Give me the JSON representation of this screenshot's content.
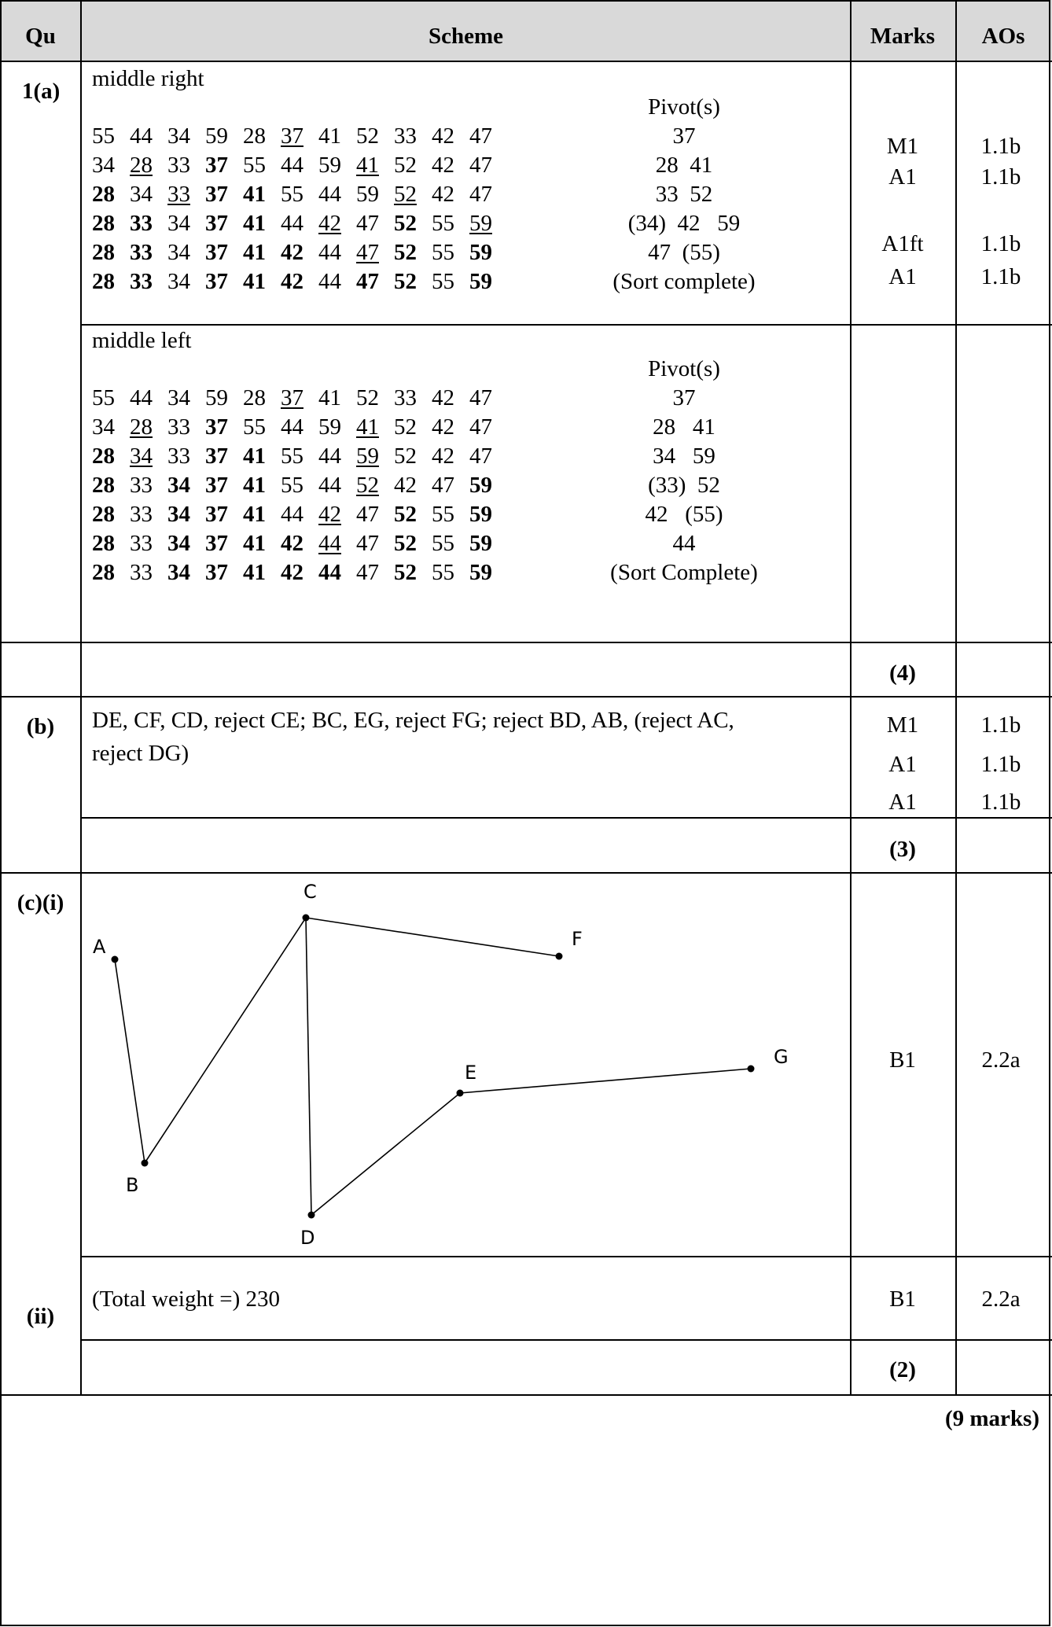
{
  "header": {
    "qu": "Qu",
    "scheme": "Scheme",
    "marks": "Marks",
    "aos": "AOs"
  },
  "q1a": {
    "label": "1(a)",
    "middle_right": {
      "title": "middle right",
      "pivot_header": "Pivot(s)",
      "rows": [
        {
          "cells": [
            {
              "v": "55"
            },
            {
              "v": "44"
            },
            {
              "v": "34"
            },
            {
              "v": "59"
            },
            {
              "v": "28"
            },
            {
              "v": "37",
              "u": true
            },
            {
              "v": "41"
            },
            {
              "v": "52"
            },
            {
              "v": "33"
            },
            {
              "v": "42"
            },
            {
              "v": "47"
            }
          ],
          "pivot": "37"
        },
        {
          "cells": [
            {
              "v": "34"
            },
            {
              "v": "28",
              "u": true
            },
            {
              "v": "33"
            },
            {
              "v": "37",
              "b": true
            },
            {
              "v": "55"
            },
            {
              "v": "44"
            },
            {
              "v": "59"
            },
            {
              "v": "41",
              "u": true
            },
            {
              "v": "52"
            },
            {
              "v": "42"
            },
            {
              "v": "47"
            }
          ],
          "pivot": "28  41"
        },
        {
          "cells": [
            {
              "v": "28",
              "b": true
            },
            {
              "v": "34"
            },
            {
              "v": "33",
              "u": true
            },
            {
              "v": "37",
              "b": true
            },
            {
              "v": "41",
              "b": true
            },
            {
              "v": "55"
            },
            {
              "v": "44"
            },
            {
              "v": "59"
            },
            {
              "v": "52",
              "u": true
            },
            {
              "v": "42"
            },
            {
              "v": "47"
            }
          ],
          "pivot": "33  52"
        },
        {
          "cells": [
            {
              "v": "28",
              "b": true
            },
            {
              "v": "33",
              "b": true
            },
            {
              "v": "34"
            },
            {
              "v": "37",
              "b": true
            },
            {
              "v": "41",
              "b": true
            },
            {
              "v": "44"
            },
            {
              "v": "42",
              "u": true
            },
            {
              "v": "47"
            },
            {
              "v": "52",
              "b": true
            },
            {
              "v": "55"
            },
            {
              "v": "59",
              "u": true
            }
          ],
          "pivot": "(34)  42   59"
        },
        {
          "cells": [
            {
              "v": "28",
              "b": true
            },
            {
              "v": "33",
              "b": true
            },
            {
              "v": "34"
            },
            {
              "v": "37",
              "b": true
            },
            {
              "v": "41",
              "b": true
            },
            {
              "v": "42",
              "b": true
            },
            {
              "v": "44"
            },
            {
              "v": "47",
              "u": true
            },
            {
              "v": "52",
              "b": true
            },
            {
              "v": "55"
            },
            {
              "v": "59",
              "b": true
            }
          ],
          "pivot": "47  (55)"
        },
        {
          "cells": [
            {
              "v": "28",
              "b": true
            },
            {
              "v": "33",
              "b": true
            },
            {
              "v": "34"
            },
            {
              "v": "37",
              "b": true
            },
            {
              "v": "41",
              "b": true
            },
            {
              "v": "42",
              "b": true
            },
            {
              "v": "44"
            },
            {
              "v": "47",
              "b": true
            },
            {
              "v": "52",
              "b": true
            },
            {
              "v": "55"
            },
            {
              "v": "59",
              "b": true
            }
          ],
          "pivot": "(Sort complete)"
        }
      ],
      "marks": [
        {
          "mark": "M1",
          "ao": "1.1b"
        },
        {
          "mark": "A1",
          "ao": "1.1b"
        },
        {
          "mark": "A1ft",
          "ao": "1.1b"
        },
        {
          "mark": "A1",
          "ao": "1.1b"
        }
      ]
    },
    "middle_left": {
      "title": "middle left",
      "pivot_header": "Pivot(s)",
      "rows": [
        {
          "cells": [
            {
              "v": "55"
            },
            {
              "v": "44"
            },
            {
              "v": "34"
            },
            {
              "v": "59"
            },
            {
              "v": "28"
            },
            {
              "v": "37",
              "u": true
            },
            {
              "v": "41"
            },
            {
              "v": "52"
            },
            {
              "v": "33"
            },
            {
              "v": "42"
            },
            {
              "v": "47"
            }
          ],
          "pivot": "37"
        },
        {
          "cells": [
            {
              "v": "34"
            },
            {
              "v": "28",
              "u": true
            },
            {
              "v": "33"
            },
            {
              "v": "37",
              "b": true
            },
            {
              "v": "55"
            },
            {
              "v": "44"
            },
            {
              "v": "59"
            },
            {
              "v": "41",
              "u": true
            },
            {
              "v": "52"
            },
            {
              "v": "42"
            },
            {
              "v": "47"
            }
          ],
          "pivot": "28   41"
        },
        {
          "cells": [
            {
              "v": "28",
              "b": true
            },
            {
              "v": "34",
              "u": true
            },
            {
              "v": "33"
            },
            {
              "v": "37",
              "b": true
            },
            {
              "v": "41",
              "b": true
            },
            {
              "v": "55"
            },
            {
              "v": "44"
            },
            {
              "v": "59",
              "u": true
            },
            {
              "v": "52"
            },
            {
              "v": "42"
            },
            {
              "v": "47"
            }
          ],
          "pivot": "34   59"
        },
        {
          "cells": [
            {
              "v": "28",
              "b": true
            },
            {
              "v": "33"
            },
            {
              "v": "34",
              "b": true
            },
            {
              "v": "37",
              "b": true
            },
            {
              "v": "41",
              "b": true
            },
            {
              "v": "55"
            },
            {
              "v": "44"
            },
            {
              "v": "52",
              "u": true
            },
            {
              "v": "42"
            },
            {
              "v": "47"
            },
            {
              "v": "59",
              "b": true
            }
          ],
          "pivot": "(33)  52"
        },
        {
          "cells": [
            {
              "v": "28",
              "b": true
            },
            {
              "v": "33"
            },
            {
              "v": "34",
              "b": true
            },
            {
              "v": "37",
              "b": true
            },
            {
              "v": "41",
              "b": true
            },
            {
              "v": "44"
            },
            {
              "v": "42",
              "u": true
            },
            {
              "v": "47"
            },
            {
              "v": "52",
              "b": true
            },
            {
              "v": "55"
            },
            {
              "v": "59",
              "b": true
            }
          ],
          "pivot": "42   (55)"
        },
        {
          "cells": [
            {
              "v": "28",
              "b": true
            },
            {
              "v": "33"
            },
            {
              "v": "34",
              "b": true
            },
            {
              "v": "37",
              "b": true
            },
            {
              "v": "41",
              "b": true
            },
            {
              "v": "42",
              "b": true
            },
            {
              "v": "44",
              "u": true
            },
            {
              "v": "47"
            },
            {
              "v": "52",
              "b": true
            },
            {
              "v": "55"
            },
            {
              "v": "59",
              "b": true
            }
          ],
          "pivot": "44"
        },
        {
          "cells": [
            {
              "v": "28",
              "b": true
            },
            {
              "v": "33"
            },
            {
              "v": "34",
              "b": true
            },
            {
              "v": "37",
              "b": true
            },
            {
              "v": "41",
              "b": true
            },
            {
              "v": "42",
              "b": true
            },
            {
              "v": "44",
              "b": true
            },
            {
              "v": "47"
            },
            {
              "v": "52",
              "b": true
            },
            {
              "v": "55"
            },
            {
              "v": "59",
              "b": true
            }
          ],
          "pivot": "(Sort Complete)"
        }
      ]
    },
    "total": "(4)"
  },
  "q1b": {
    "label": "(b)",
    "line1": "DE, CF, CD, reject CE; BC, EG, reject FG; reject BD, AB, (reject AC,",
    "line2": "reject DG)",
    "marks": [
      {
        "mark": "M1",
        "ao": "1.1b"
      },
      {
        "mark": "A1",
        "ao": "1.1b"
      },
      {
        "mark": "A1",
        "ao": "1.1b"
      }
    ],
    "total": "(3)"
  },
  "q1c": {
    "label_i": "(c)(i)",
    "label_ii": "(ii)",
    "diagram": {
      "nodes": [
        {
          "id": "A",
          "label": "A"
        },
        {
          "id": "B",
          "label": "B"
        },
        {
          "id": "C",
          "label": "C"
        },
        {
          "id": "D",
          "label": "D"
        },
        {
          "id": "E",
          "label": "E"
        },
        {
          "id": "F",
          "label": "F"
        },
        {
          "id": "G",
          "label": "G"
        }
      ],
      "edges": [
        [
          "A",
          "B"
        ],
        [
          "B",
          "C"
        ],
        [
          "C",
          "F"
        ],
        [
          "C",
          "D"
        ],
        [
          "D",
          "E"
        ],
        [
          "E",
          "G"
        ]
      ]
    },
    "mark_i": {
      "mark": "B1",
      "ao": "2.2a"
    },
    "ii_text": "(Total weight =) 230",
    "mark_ii": {
      "mark": "B1",
      "ao": "2.2a"
    },
    "total": "(2)"
  },
  "grand_total": "(9 marks)"
}
